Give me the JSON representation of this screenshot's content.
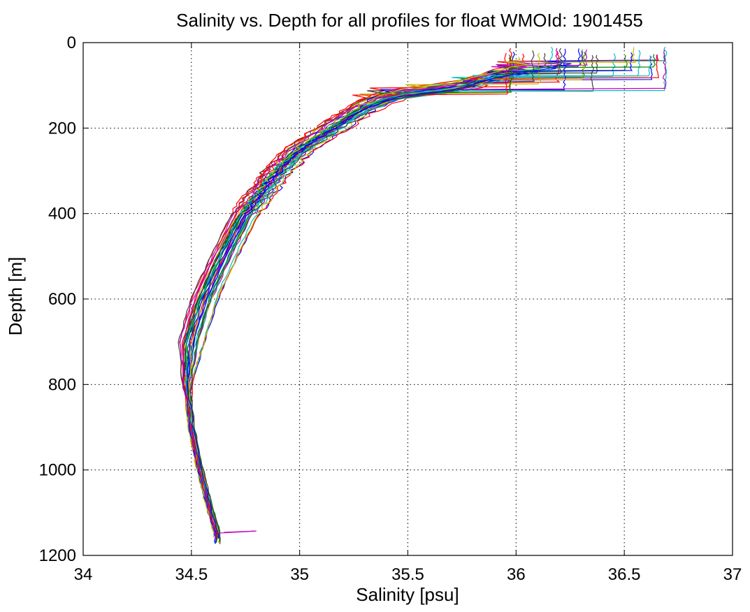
{
  "chart_data": {
    "type": "line",
    "title": "Salinity vs. Depth for all profiles for float WMOId: 1901455",
    "xlabel": "Salinity [psu]",
    "ylabel": "Depth [m]",
    "xlim": [
      34,
      37
    ],
    "ylim": [
      0,
      1200
    ],
    "y_reversed": true,
    "xticks": [
      34,
      34.5,
      35,
      35.5,
      36,
      36.5,
      37
    ],
    "xtick_labels": [
      "34",
      "34.5",
      "35",
      "35.5",
      "36",
      "36.5",
      "37"
    ],
    "yticks": [
      0,
      200,
      400,
      600,
      800,
      1000,
      1200
    ],
    "ytick_labels": [
      "0",
      "200",
      "400",
      "600",
      "800",
      "1000",
      "1200"
    ],
    "grid": true,
    "grid_style": "dotted",
    "legend": "none",
    "series_colors": [
      "#0000ff",
      "#008000",
      "#ff0000",
      "#00bfbf",
      "#bf00bf",
      "#bfbf00",
      "#404040"
    ],
    "profile_count": 36,
    "representative_profile": {
      "depth": [
        5,
        40,
        70,
        100,
        120,
        150,
        200,
        250,
        300,
        400,
        500,
        600,
        700,
        800,
        900,
        1000,
        1100,
        1150
      ],
      "salinity": [
        36.35,
        36.3,
        35.95,
        35.75,
        35.45,
        35.3,
        35.15,
        35.0,
        34.9,
        34.75,
        34.65,
        34.56,
        34.5,
        34.48,
        34.5,
        34.54,
        34.59,
        34.62
      ]
    },
    "annotations": []
  }
}
